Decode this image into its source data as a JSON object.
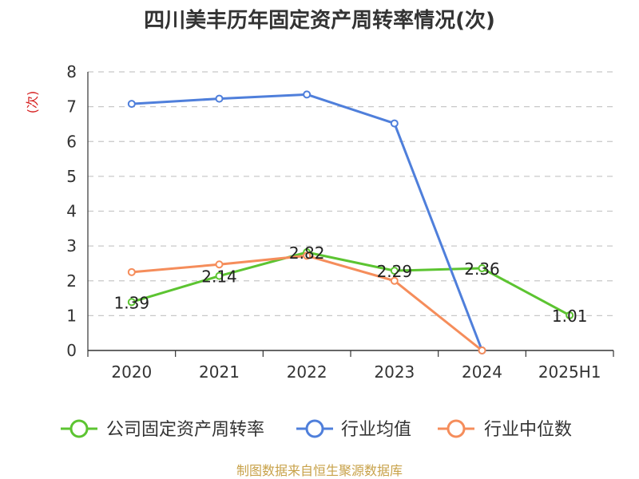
{
  "chart_data": {
    "type": "line",
    "title": "四川美丰历年固定资产周转率情况(次)",
    "ylabel": "(次)",
    "xlabel": "",
    "categories": [
      "2020",
      "2021",
      "2022",
      "2023",
      "2024",
      "2025H1"
    ],
    "ylim": [
      0,
      8
    ],
    "yticks": [
      0,
      1,
      2,
      3,
      4,
      5,
      6,
      7,
      8
    ],
    "grid": true,
    "legend_position": "bottom",
    "series": [
      {
        "name": "公司固定资产周转率",
        "color": "#5cc431",
        "values": [
          1.39,
          2.14,
          2.82,
          2.29,
          2.36,
          1.01
        ],
        "labels": [
          "1.39",
          "2.14",
          "2.82",
          "2.29",
          "2.36",
          "1.01"
        ]
      },
      {
        "name": "行业均值",
        "color": "#4f7fdb",
        "values": [
          7.08,
          7.23,
          7.35,
          6.52,
          0.0,
          null
        ],
        "labels": []
      },
      {
        "name": "行业中位数",
        "color": "#f58d5b",
        "values": [
          2.25,
          2.47,
          2.72,
          2.0,
          0.0,
          null
        ],
        "labels": []
      }
    ],
    "source": "制图数据来自恒生聚源数据库"
  }
}
